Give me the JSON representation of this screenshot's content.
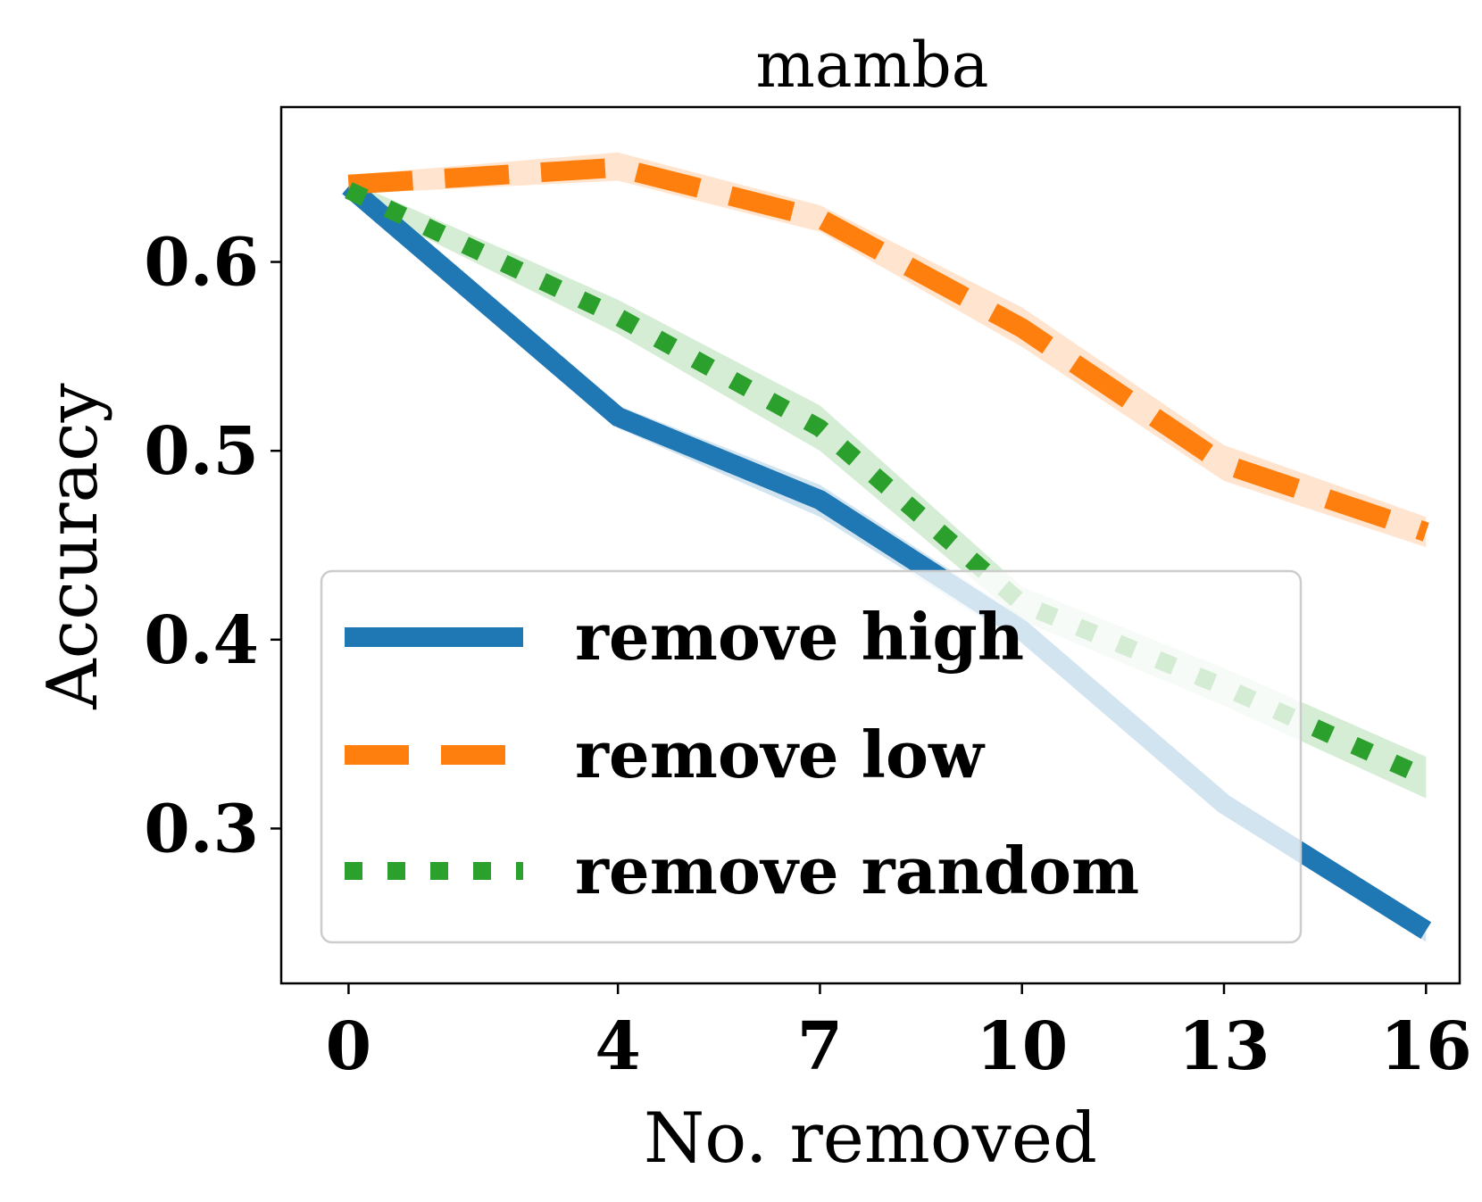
{
  "chart_data": {
    "type": "line",
    "title": "mamba",
    "xlabel": "No. removed",
    "ylabel": "Accuracy",
    "x": [
      0,
      4,
      7,
      10,
      13,
      16
    ],
    "x_tick_labels": [
      "0",
      "4",
      "7",
      "10",
      "13",
      "16"
    ],
    "xlim": [
      -1,
      16.5
    ],
    "y_ticks": [
      0.3,
      0.4,
      0.5,
      0.6
    ],
    "y_tick_labels": [
      "0.3",
      "0.4",
      "0.5",
      "0.6"
    ],
    "ylim": [
      0.218,
      0.682
    ],
    "grid": false,
    "legend_position": "lower-left",
    "series": [
      {
        "name": "remove high",
        "color": "#1f77b4",
        "style": "solid",
        "values": [
          0.64,
          0.518,
          0.474,
          0.405,
          0.313,
          0.246
        ],
        "band_lower": [
          0.638,
          0.512,
          0.465,
          0.398,
          0.307,
          0.24
        ],
        "band_upper": [
          0.642,
          0.524,
          0.482,
          0.412,
          0.319,
          0.252
        ]
      },
      {
        "name": "remove low",
        "color": "#ff7f0e",
        "style": "dashed",
        "values": [
          0.641,
          0.65,
          0.623,
          0.565,
          0.493,
          0.457
        ],
        "band_lower": [
          0.636,
          0.643,
          0.616,
          0.555,
          0.484,
          0.449
        ],
        "band_upper": [
          0.646,
          0.658,
          0.63,
          0.576,
          0.503,
          0.465
        ]
      },
      {
        "name": "remove random",
        "color": "#2ca02c",
        "style": "dotted",
        "values": [
          0.638,
          0.571,
          0.512,
          0.419,
          0.375,
          0.327
        ],
        "band_lower": [
          0.633,
          0.562,
          0.5,
          0.41,
          0.365,
          0.316
        ],
        "band_upper": [
          0.643,
          0.58,
          0.524,
          0.428,
          0.385,
          0.338
        ]
      }
    ]
  }
}
